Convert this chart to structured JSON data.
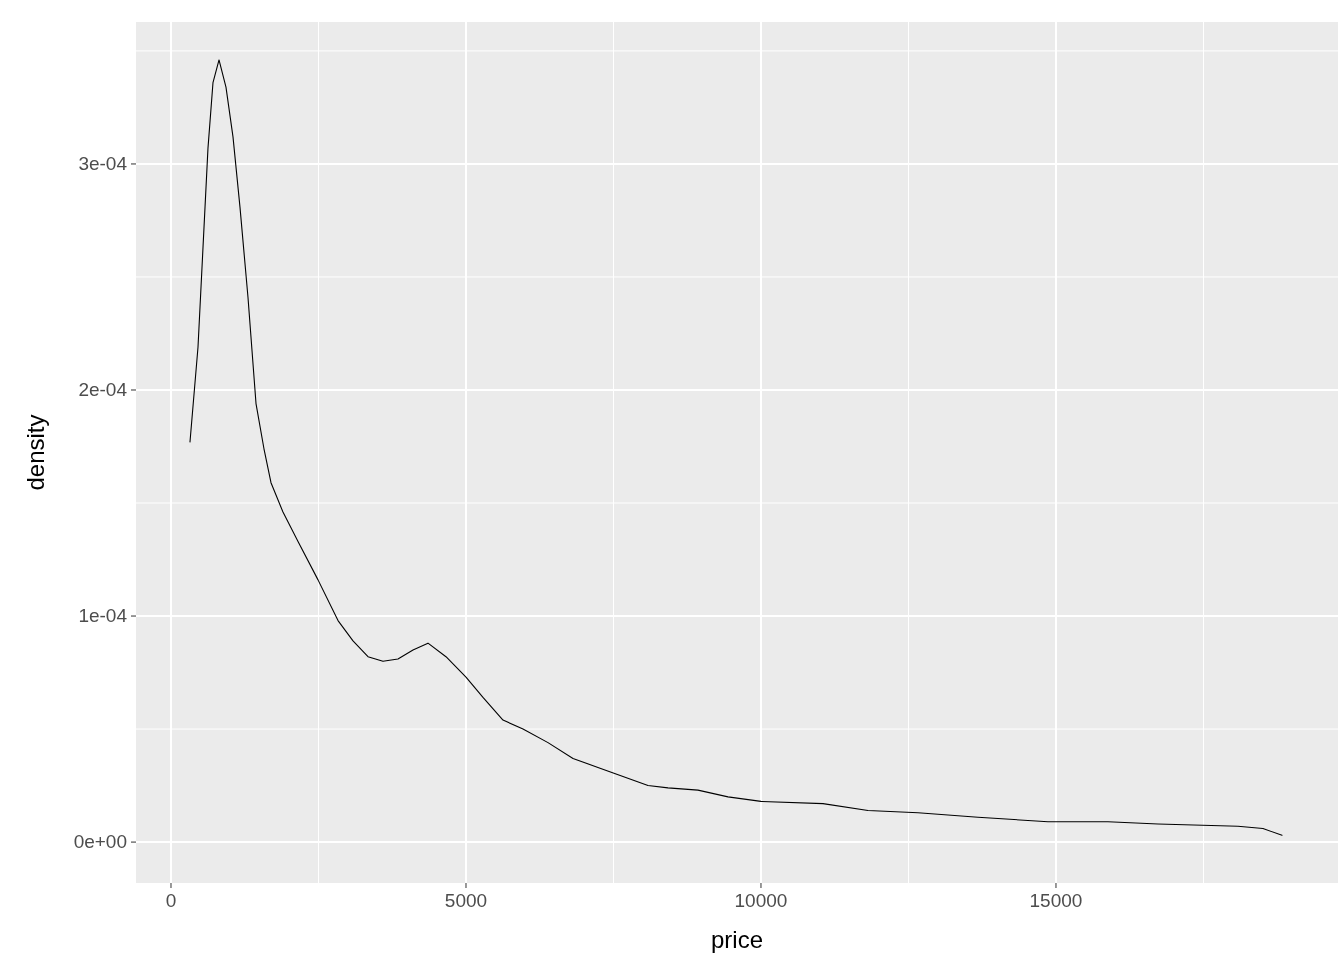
{
  "chart_data": {
    "type": "line",
    "xlabel": "price",
    "ylabel": "density",
    "x": [
      322,
      458,
      627,
      712,
      814,
      932,
      1051,
      1169,
      1305,
      1441,
      1576,
      1695,
      1898,
      2153,
      2492,
      2831,
      3085,
      3339,
      3593,
      3847,
      4102,
      4356,
      4661,
      5000,
      5288,
      5627,
      5966,
      6390,
      6814,
      7237,
      7661,
      8085,
      8424,
      8932,
      9441,
      10000,
      11051,
      11814,
      12661,
      13678,
      14864,
      15881,
      16729,
      18085,
      18508,
      18831
    ],
    "series": [
      {
        "color": "#000000",
        "values": [
          0.000177,
          0.000219,
          0.000307,
          0.000336,
          0.000346,
          0.000334,
          0.000312,
          0.000281,
          0.000241,
          0.000194,
          0.000174,
          0.000159,
          0.000146,
          0.000133,
          0.000116,
          9.8e-05,
          8.9e-05,
          8.2e-05,
          8e-05,
          8.1e-05,
          8.5e-05,
          8.8e-05,
          8.2e-05,
          7.3e-05,
          6.4e-05,
          5.4e-05,
          5e-05,
          4.4e-05,
          3.7e-05,
          3.3e-05,
          2.9e-05,
          2.5e-05,
          2.4e-05,
          2.3e-05,
          2e-05,
          1.8e-05,
          1.7e-05,
          1.4e-05,
          1.3e-05,
          1.1e-05,
          9e-06,
          9e-06,
          8e-06,
          7e-06,
          6e-06,
          3e-06
        ]
      }
    ],
    "xlim": [
      -593,
      19780
    ],
    "ylim": [
      -1.81e-05,
      0.0003628
    ],
    "xticks": [
      0,
      {
        "value": 2500,
        "label": null
      },
      5000,
      {
        "value": 7500,
        "label": null
      },
      10000,
      {
        "value": 12500,
        "label": null
      },
      15000,
      {
        "value": 17500,
        "label": null
      }
    ],
    "yticks": [
      {
        "value": 0,
        "label": "0e+00"
      },
      {
        "value": 5e-05,
        "label": null
      },
      {
        "value": 0.0001,
        "label": "1e-04"
      },
      {
        "value": 0.00015,
        "label": null
      },
      {
        "value": 0.0002,
        "label": "2e-04"
      },
      {
        "value": 0.00025,
        "label": null
      },
      {
        "value": 0.0003,
        "label": "3e-04"
      },
      {
        "value": 0.00035,
        "label": null
      }
    ],
    "grid": true,
    "marker": "none",
    "line_style": "solid"
  }
}
